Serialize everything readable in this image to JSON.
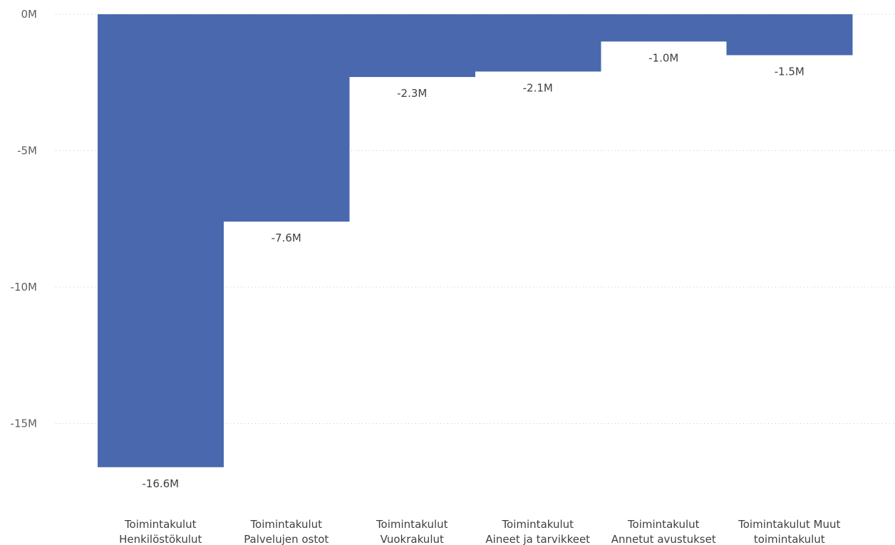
{
  "chart_data": {
    "type": "bar",
    "subtype": "waterfall",
    "title": "",
    "xlabel": "",
    "ylabel": "",
    "ylim": [
      -17.5,
      0
    ],
    "y_ticks": [
      {
        "value": 0,
        "label": "0M"
      },
      {
        "value": -5,
        "label": "-5M"
      },
      {
        "value": -10,
        "label": "-10M"
      },
      {
        "value": -15,
        "label": "-15M"
      }
    ],
    "grid": true,
    "legend": "none",
    "bar_color": "#4a68ad",
    "categories": [
      {
        "line1": "Toimintakulut",
        "line2": "Henkilöstökulut"
      },
      {
        "line1": "Toimintakulut",
        "line2": "Palvelujen ostot"
      },
      {
        "line1": "Toimintakulut",
        "line2": "Vuokrakulut"
      },
      {
        "line1": "Toimintakulut",
        "line2": "Aineet ja tarvikkeet"
      },
      {
        "line1": "Toimintakulut",
        "line2": "Annetut avustukset"
      },
      {
        "line1": "Toimintakulut Muut",
        "line2": "toimintakulut"
      }
    ],
    "values": [
      -16.6,
      -7.6,
      -2.3,
      -2.1,
      -1.0,
      -1.5
    ],
    "data_labels": [
      "-16.6M",
      "-7.6M",
      "-2.3M",
      "-2.1M",
      "-1.0M",
      "-1.5M"
    ]
  }
}
